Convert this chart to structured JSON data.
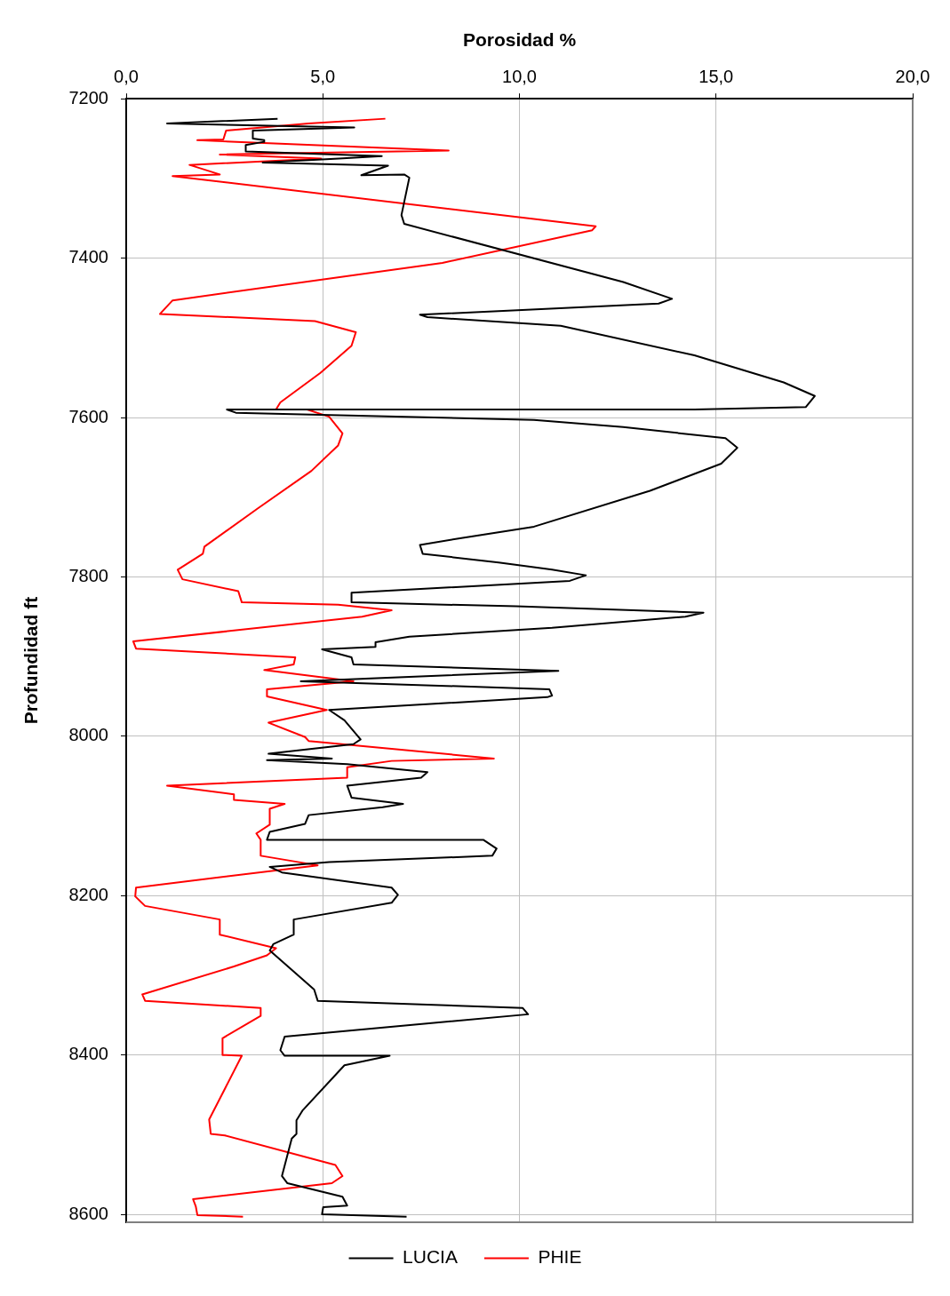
{
  "chart_data": {
    "type": "line",
    "xlabel": "Porosidad %",
    "ylabel": "Profundidad ft",
    "xlim": [
      0,
      20
    ],
    "xticks": [
      {
        "value": 0,
        "label": "0,0"
      },
      {
        "value": 5,
        "label": "5,0"
      },
      {
        "value": 10,
        "label": "10,0"
      },
      {
        "value": 15,
        "label": "15,0"
      },
      {
        "value": 20,
        "label": "20,0"
      }
    ],
    "ylim": [
      8610,
      7200
    ],
    "yticks": [
      7200,
      7400,
      7600,
      7800,
      8000,
      8200,
      8400,
      8600
    ],
    "grid": true,
    "legend": "bottom",
    "marker": "none",
    "line_style": "solid",
    "series": [
      {
        "name": "LUCIA",
        "color": "#000000",
        "x": [
          3.85,
          1.04,
          5.8,
          3.22,
          3.22,
          3.51,
          3.51,
          3.04,
          3.04,
          6.5,
          5.41,
          3.47,
          6.66,
          5.98,
          7.07,
          7.2,
          7.0,
          7.07,
          12.64,
          13.88,
          13.54,
          7.47,
          7.66,
          11.05,
          14.45,
          16.72,
          17.51,
          17.28,
          14.45,
          2.56,
          2.79,
          10.37,
          12.64,
          15.24,
          15.54,
          15.13,
          13.32,
          10.37,
          8.56,
          7.47,
          7.54,
          9.47,
          10.83,
          11.69,
          11.28,
          5.73,
          5.73,
          9.92,
          14.68,
          14.22,
          10.83,
          7.2,
          6.34,
          6.34,
          4.98,
          5.73,
          5.78,
          10.99,
          4.44,
          10.76,
          10.83,
          10.71,
          5.16,
          5.55,
          5.96,
          5.78,
          3.62,
          5.23,
          3.58,
          5.62,
          7.66,
          7.5,
          5.62,
          5.73,
          7.04,
          6.52,
          4.64,
          4.55,
          3.65,
          3.58,
          9.08,
          9.42,
          9.31,
          5.16,
          3.65,
          3.96,
          6.75,
          6.91,
          6.75,
          4.26,
          4.26,
          3.74,
          3.65,
          4.78,
          4.87,
          10.08,
          10.22,
          4.03,
          3.92,
          4.03,
          6.7,
          5.55,
          4.48,
          4.33,
          4.33,
          4.21,
          3.96,
          4.1,
          5.5,
          5.62,
          5.01,
          4.98,
          7.13
        ],
        "values": [
          7225,
          7231,
          7236,
          7240,
          7250,
          7252,
          7254,
          7258,
          7266,
          7272,
          7275,
          7280,
          7284,
          7296,
          7295,
          7299,
          7346,
          7357,
          7430,
          7451,
          7457,
          7471,
          7474,
          7485,
          7522,
          7556,
          7573,
          7587,
          7590,
          7590,
          7594,
          7603,
          7612,
          7626,
          7638,
          7658,
          7692,
          7737,
          7751,
          7760,
          7771,
          7782,
          7791,
          7798,
          7805,
          7820,
          7832,
          7837,
          7845,
          7850,
          7864,
          7875,
          7882,
          7888,
          7891,
          7901,
          7910,
          7918,
          7931,
          7941,
          7949,
          7951,
          7967,
          7980,
          8004,
          8010,
          8022,
          8028,
          8030,
          8035,
          8045,
          8052,
          8062,
          8077,
          8085,
          8089,
          8099,
          8110,
          8120,
          8130,
          8130,
          8141,
          8150,
          8158,
          8164,
          8171,
          8190,
          8199,
          8209,
          8230,
          8249,
          8261,
          8269,
          8318,
          8332,
          8341,
          8349,
          8377,
          8394,
          8401,
          8401,
          8413,
          8470,
          8482,
          8499,
          8505,
          8552,
          8561,
          8578,
          8589,
          8591,
          8600,
          8603
        ]
      },
      {
        "name": "PHIE",
        "color": "#ff0000",
        "x": [
          6.59,
          4.64,
          2.54,
          2.47,
          1.81,
          8.2,
          2.38,
          4.96,
          1.61,
          2.38,
          1.18,
          11.94,
          11.85,
          8.04,
          1.18,
          0.86,
          4.8,
          5.84,
          5.73,
          4.94,
          3.92,
          3.81,
          4.6,
          5.16,
          5.5,
          5.39,
          4.71,
          3.35,
          1.99,
          1.95,
          1.31,
          1.43,
          2.85,
          2.94,
          5.39,
          6.75,
          6.0,
          0.18,
          0.25,
          4.3,
          4.26,
          3.51,
          5.78,
          3.58,
          3.58,
          5.1,
          3.62,
          4.55,
          4.64,
          9.35,
          6.75,
          5.62,
          5.62,
          1.04,
          2.74,
          2.74,
          4.03,
          3.65,
          3.65,
          3.31,
          3.42,
          3.42,
          4.87,
          0.25,
          0.23,
          0.48,
          2.38,
          2.38,
          3.81,
          3.58,
          2.74,
          0.41,
          0.48,
          3.42,
          3.42,
          2.45,
          2.45,
          2.94,
          2.11,
          2.15,
          2.51,
          5.32,
          5.5,
          5.23,
          1.7,
          1.77,
          1.81,
          2.97
        ],
        "values": [
          7225,
          7231,
          7240,
          7251,
          7252,
          7265,
          7270,
          7275,
          7283,
          7295,
          7297,
          7360,
          7365,
          7406,
          7453,
          7470,
          7479,
          7493,
          7510,
          7544,
          7581,
          7590,
          7590,
          7599,
          7620,
          7635,
          7667,
          7714,
          7762,
          7771,
          7791,
          7803,
          7818,
          7832,
          7835,
          7842,
          7850,
          7881,
          7890,
          7901,
          7910,
          7917,
          7931,
          7941,
          7950,
          7967,
          7983,
          8001,
          8006,
          8028,
          8031,
          8039,
          8052,
          8062,
          8073,
          8080,
          8085,
          8091,
          8111,
          8122,
          8130,
          8150,
          8162,
          8190,
          8201,
          8213,
          8230,
          8249,
          8266,
          8275,
          8289,
          8324,
          8332,
          8341,
          8351,
          8379,
          8400,
          8401,
          8481,
          8499,
          8501,
          8538,
          8552,
          8561,
          8581,
          8590,
          8601,
          8603
        ]
      }
    ]
  }
}
